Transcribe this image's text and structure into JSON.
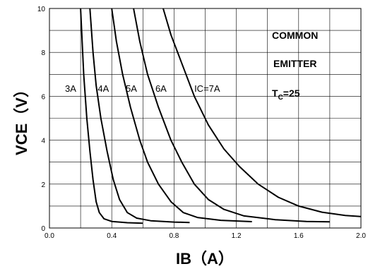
{
  "chart_data": {
    "type": "line",
    "xlabel": "IB（A）",
    "ylabel": "VCE（V）",
    "xlim": [
      0.0,
      2.0
    ],
    "ylim": [
      0,
      10
    ],
    "x_ticks": [
      "0.0",
      "0.4",
      "0.8",
      "1.2",
      "1.6",
      "2.0"
    ],
    "y_ticks": [
      "0",
      "2",
      "4",
      "6",
      "8",
      "10"
    ],
    "grid": true,
    "annotations": [
      "COMMON",
      "EMITTER"
    ],
    "temp_label": {
      "main": "T",
      "sub": "C",
      "value": "=25"
    },
    "series": [
      {
        "name": "3A",
        "label_at": [
          0.1,
          6.2
        ],
        "points": [
          [
            0.2,
            10
          ],
          [
            0.22,
            7.0
          ],
          [
            0.24,
            5.0
          ],
          [
            0.26,
            3.5
          ],
          [
            0.28,
            2.2
          ],
          [
            0.3,
            1.2
          ],
          [
            0.32,
            0.7
          ],
          [
            0.35,
            0.42
          ],
          [
            0.4,
            0.3
          ],
          [
            0.5,
            0.24
          ],
          [
            0.6,
            0.22
          ]
        ]
      },
      {
        "name": "4A",
        "label_at": [
          0.31,
          6.2
        ],
        "points": [
          [
            0.26,
            10
          ],
          [
            0.28,
            8.0
          ],
          [
            0.3,
            6.5
          ],
          [
            0.33,
            5.0
          ],
          [
            0.37,
            3.5
          ],
          [
            0.41,
            2.2
          ],
          [
            0.45,
            1.3
          ],
          [
            0.5,
            0.7
          ],
          [
            0.56,
            0.45
          ],
          [
            0.65,
            0.33
          ],
          [
            0.8,
            0.27
          ],
          [
            0.9,
            0.25
          ]
        ]
      },
      {
        "name": "5A",
        "label_at": [
          0.49,
          6.2
        ],
        "points": [
          [
            0.4,
            10
          ],
          [
            0.43,
            8.5
          ],
          [
            0.47,
            7.0
          ],
          [
            0.52,
            5.5
          ],
          [
            0.58,
            4.0
          ],
          [
            0.63,
            3.0
          ],
          [
            0.7,
            2.0
          ],
          [
            0.78,
            1.2
          ],
          [
            0.86,
            0.7
          ],
          [
            0.95,
            0.48
          ],
          [
            1.1,
            0.35
          ],
          [
            1.3,
            0.29
          ]
        ]
      },
      {
        "name": "6A",
        "label_at": [
          0.68,
          6.2
        ],
        "points": [
          [
            0.54,
            10
          ],
          [
            0.58,
            8.5
          ],
          [
            0.63,
            7.0
          ],
          [
            0.7,
            5.5
          ],
          [
            0.78,
            4.0
          ],
          [
            0.85,
            3.0
          ],
          [
            0.93,
            2.0
          ],
          [
            1.02,
            1.3
          ],
          [
            1.12,
            0.85
          ],
          [
            1.25,
            0.55
          ],
          [
            1.45,
            0.38
          ],
          [
            1.65,
            0.3
          ],
          [
            1.8,
            0.28
          ]
        ]
      },
      {
        "name": "IC=7A",
        "label_at": [
          0.93,
          6.2
        ],
        "points": [
          [
            0.73,
            10
          ],
          [
            0.78,
            8.8
          ],
          [
            0.85,
            7.5
          ],
          [
            0.93,
            6.0
          ],
          [
            1.02,
            4.7
          ],
          [
            1.12,
            3.6
          ],
          [
            1.22,
            2.8
          ],
          [
            1.34,
            2.0
          ],
          [
            1.47,
            1.4
          ],
          [
            1.6,
            1.0
          ],
          [
            1.75,
            0.72
          ],
          [
            1.9,
            0.57
          ],
          [
            2.0,
            0.52
          ]
        ]
      }
    ]
  }
}
